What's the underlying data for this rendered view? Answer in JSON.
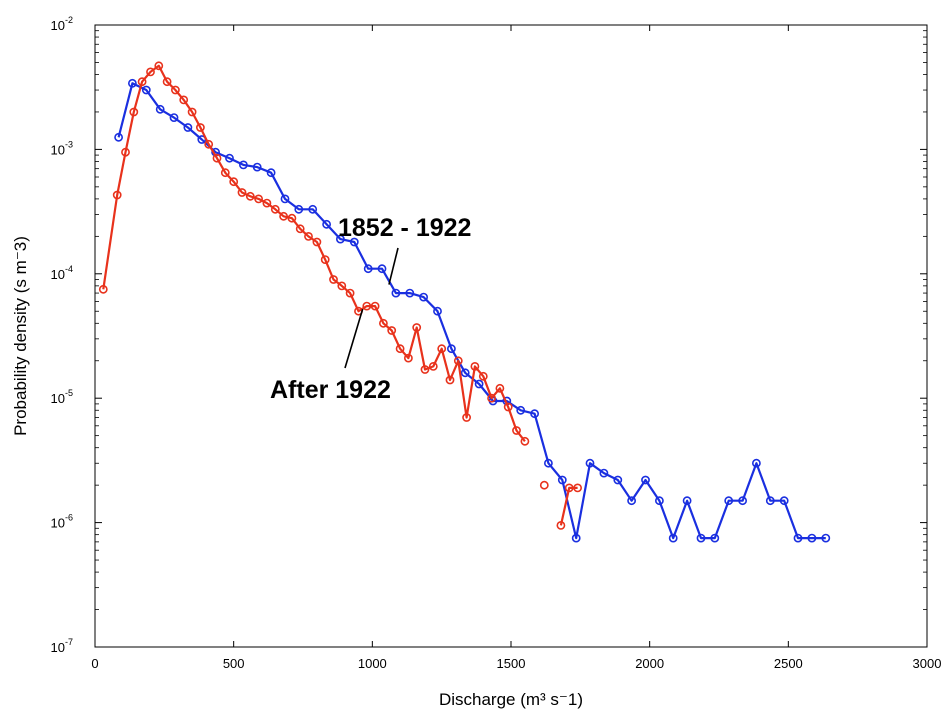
{
  "chart_data": {
    "type": "line",
    "title": "",
    "xlabel": "Discharge (m³ s⁻1)",
    "ylabel": "Probability density (s m⁻3)",
    "xlim": [
      0,
      3000
    ],
    "ylim": [
      1e-07,
      0.01
    ],
    "yscale": "log",
    "grid": false,
    "x_ticks": [
      0,
      500,
      1000,
      1500,
      2000,
      2500,
      3000
    ],
    "y_ticks": [
      {
        "value": 1e-07,
        "base": "10",
        "exp": "-7"
      },
      {
        "value": 1e-06,
        "base": "10",
        "exp": "-6"
      },
      {
        "value": 1e-05,
        "base": "10",
        "exp": "-5"
      },
      {
        "value": 0.0001,
        "base": "10",
        "exp": "-4"
      },
      {
        "value": 0.001,
        "base": "10",
        "exp": "-3"
      },
      {
        "value": 0.01,
        "base": "10",
        "exp": "-2"
      }
    ],
    "series": [
      {
        "label": "1852 - 1922",
        "color": "#1a2fe0",
        "segments": [
          {
            "x": [
              85,
              135,
              185,
              235,
              285,
              335,
              385,
              435,
              485,
              535,
              585,
              635,
              685,
              735,
              785,
              835,
              885,
              935,
              985,
              1035,
              1085,
              1135,
              1185,
              1235,
              1285,
              1335,
              1385,
              1435,
              1485,
              1535,
              1585,
              1635,
              1685,
              1735,
              1785,
              1835,
              1885,
              1935,
              1985,
              2035,
              2085,
              2135,
              2185,
              2235,
              2285,
              2335,
              2385,
              2435,
              2485,
              2535,
              2585,
              2635
            ],
            "y": [
              0.00125,
              0.0034,
              0.003,
              0.0021,
              0.0018,
              0.0015,
              0.0012,
              0.00095,
              0.00085,
              0.00075,
              0.00072,
              0.00065,
              0.0004,
              0.00033,
              0.00033,
              0.00025,
              0.00019,
              0.00018,
              0.00011,
              0.00011,
              7e-05,
              7e-05,
              6.5e-05,
              5e-05,
              2.5e-05,
              1.6e-05,
              1.3e-05,
              9.5e-06,
              9.5e-06,
              8e-06,
              7.5e-06,
              3e-06,
              2.2e-06,
              7.5e-07,
              3e-06,
              2.5e-06,
              2.2e-06,
              1.5e-06,
              2.2e-06,
              1.5e-06,
              7.5e-07,
              1.5e-06,
              7.5e-07,
              7.5e-07,
              1.5e-06,
              1.5e-06,
              3e-06,
              1.5e-06,
              1.5e-06,
              7.5e-07,
              7.5e-07,
              7.5e-07
            ]
          }
        ]
      },
      {
        "label": "After 1922",
        "color": "#e8321c",
        "segments": [
          {
            "x": [
              30,
              80,
              110,
              140,
              170,
              200,
              230,
              260,
              290,
              320,
              350,
              380,
              410,
              440,
              470,
              500,
              530,
              560,
              590,
              620,
              650,
              680,
              710,
              740,
              770,
              800,
              830,
              860,
              890,
              920,
              950,
              980,
              1010,
              1040,
              1070,
              1100,
              1130,
              1160,
              1190,
              1220,
              1250,
              1280,
              1310,
              1340,
              1370,
              1400,
              1430,
              1460,
              1490,
              1520,
              1550
            ],
            "y": [
              7.5e-05,
              0.00043,
              0.00095,
              0.002,
              0.0035,
              0.0042,
              0.0047,
              0.0035,
              0.003,
              0.0025,
              0.002,
              0.0015,
              0.0011,
              0.00085,
              0.00065,
              0.00055,
              0.00045,
              0.00042,
              0.0004,
              0.00037,
              0.00033,
              0.00029,
              0.00028,
              0.00023,
              0.0002,
              0.00018,
              0.00013,
              9e-05,
              8e-05,
              7e-05,
              5e-05,
              5.5e-05,
              5.5e-05,
              4e-05,
              3.5e-05,
              2.5e-05,
              2.1e-05,
              3.7e-05,
              1.7e-05,
              1.8e-05,
              2.5e-05,
              1.4e-05,
              2e-05,
              7e-06,
              1.8e-05,
              1.5e-05,
              1e-05,
              1.2e-05,
              8.5e-06,
              5.5e-06,
              4.5e-06
            ]
          },
          {
            "x": [
              1620
            ],
            "y": [
              2e-06
            ]
          },
          {
            "x": [
              1680,
              1710,
              1740
            ],
            "y": [
              9.5e-07,
              1.9e-06,
              1.9e-06
            ]
          }
        ]
      }
    ],
    "annotations": [
      {
        "text": "1852 - 1922",
        "points_to": [
          1060,
          8.2e-05
        ]
      },
      {
        "text": "After 1922",
        "points_to": [
          965,
          5.2e-05
        ]
      }
    ]
  }
}
